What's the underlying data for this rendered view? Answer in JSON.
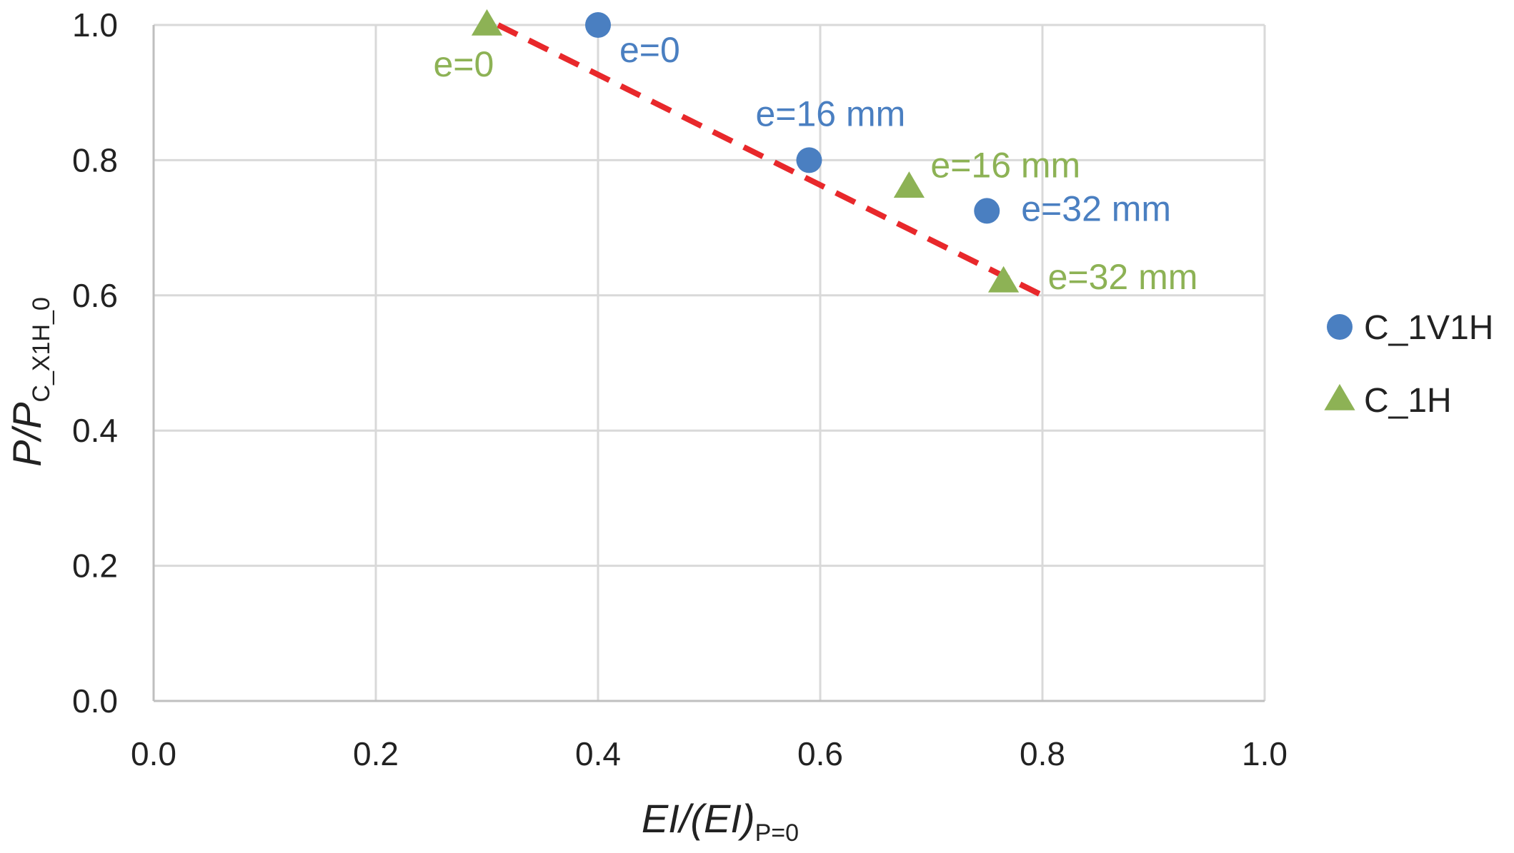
{
  "chart_data": {
    "type": "scatter",
    "title": "",
    "xlabel": "EI/(EI)",
    "xlabel_sub": "P=0",
    "ylabel": "P/P",
    "ylabel_sub": "C_X1H_0",
    "xlim": [
      0,
      1.0
    ],
    "ylim": [
      0,
      1.0
    ],
    "xticks": [
      "0.0",
      "0.2",
      "0.4",
      "0.6",
      "0.8",
      "1.0"
    ],
    "yticks": [
      "0.0",
      "0.2",
      "0.4",
      "0.6",
      "0.8",
      "1.0"
    ],
    "grid": true,
    "legend_position": "right",
    "series": [
      {
        "name": "C_1V1H",
        "marker": "circle",
        "color": "#4a7fc1",
        "points": [
          {
            "x": 0.4,
            "y": 1.0,
            "label": "e=0"
          },
          {
            "x": 0.59,
            "y": 0.8,
            "label": "e=16 mm"
          },
          {
            "x": 0.75,
            "y": 0.725,
            "label": "e=32 mm"
          }
        ]
      },
      {
        "name": "C_1H",
        "marker": "triangle",
        "color": "#8db255",
        "points": [
          {
            "x": 0.3,
            "y": 1.0,
            "label": "e=0"
          },
          {
            "x": 0.68,
            "y": 0.76,
            "label": "e=16 mm"
          },
          {
            "x": 0.765,
            "y": 0.62,
            "label": "e=32 mm"
          }
        ]
      }
    ],
    "trendline": {
      "style": "dashed",
      "color": "#e8282b",
      "points": [
        [
          0.31,
          1.0
        ],
        [
          0.8,
          0.6
        ]
      ]
    }
  }
}
